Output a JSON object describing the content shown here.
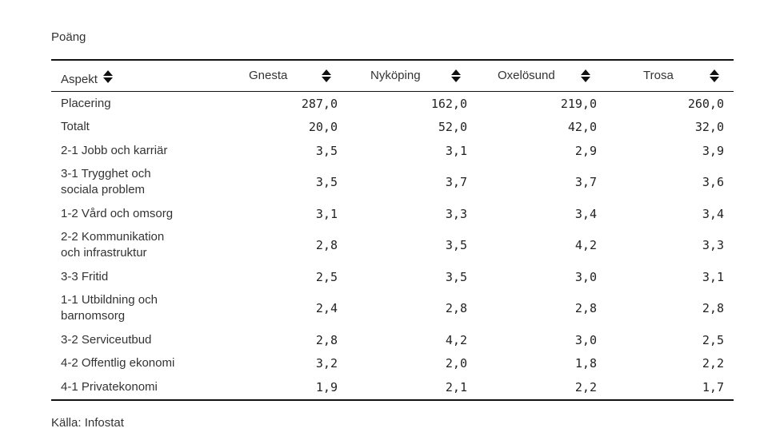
{
  "subtitle": "Poäng",
  "source": "Källa: Infostat",
  "chart_data": {
    "type": "table",
    "columns": [
      "Aspekt",
      "Gnesta",
      "Nyköping",
      "Oxelösund",
      "Trosa"
    ],
    "rows": [
      {
        "label": "Placering",
        "values": [
          "287,0",
          "162,0",
          "219,0",
          "260,0"
        ]
      },
      {
        "label": "Totalt",
        "values": [
          "20,0",
          "52,0",
          "42,0",
          "32,0"
        ]
      },
      {
        "label": "2-1 Jobb och karriär",
        "values": [
          "3,5",
          "3,1",
          "2,9",
          "3,9"
        ]
      },
      {
        "label": "3-1 Trygghet och sociala problem",
        "values": [
          "3,5",
          "3,7",
          "3,7",
          "3,6"
        ]
      },
      {
        "label": "1-2 Vård och omsorg",
        "values": [
          "3,1",
          "3,3",
          "3,4",
          "3,4"
        ]
      },
      {
        "label": "2-2 Kommunikation och infrastruktur",
        "values": [
          "2,8",
          "3,5",
          "4,2",
          "3,3"
        ]
      },
      {
        "label": "3-3 Fritid",
        "values": [
          "2,5",
          "3,5",
          "3,0",
          "3,1"
        ]
      },
      {
        "label": "1-1 Utbildning och barnomsorg",
        "values": [
          "2,4",
          "2,8",
          "2,8",
          "2,8"
        ]
      },
      {
        "label": "3-2 Serviceutbud",
        "values": [
          "2,8",
          "4,2",
          "3,0",
          "2,5"
        ]
      },
      {
        "label": "4-2 Offentlig ekonomi",
        "values": [
          "3,2",
          "2,0",
          "1,8",
          "2,2"
        ]
      },
      {
        "label": "4-1 Privatekonomi",
        "values": [
          "1,9",
          "2,1",
          "2,2",
          "1,7"
        ]
      }
    ]
  }
}
